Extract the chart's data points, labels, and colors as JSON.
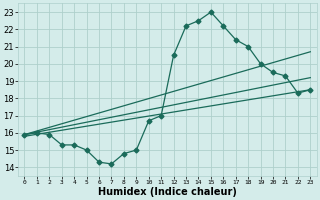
{
  "xlabel": "Humidex (Indice chaleur)",
  "xlim": [
    -0.5,
    23.5
  ],
  "ylim": [
    13.5,
    23.5
  ],
  "xticks": [
    0,
    1,
    2,
    3,
    4,
    5,
    6,
    7,
    8,
    9,
    10,
    11,
    12,
    13,
    14,
    15,
    16,
    17,
    18,
    19,
    20,
    21,
    22,
    23
  ],
  "yticks": [
    14,
    15,
    16,
    17,
    18,
    19,
    20,
    21,
    22,
    23
  ],
  "bg_color": "#d4ecea",
  "grid_color": "#aed0cc",
  "line_color": "#1a6b5a",
  "line1_x": [
    0,
    1,
    2,
    3,
    4,
    5,
    6,
    7,
    8,
    9,
    10,
    11,
    12,
    13,
    14,
    15,
    16,
    17,
    18,
    19,
    20,
    21,
    22,
    23
  ],
  "line1_y": [
    15.9,
    16.0,
    15.9,
    15.3,
    15.3,
    15.0,
    14.3,
    14.2,
    14.8,
    15.0,
    16.7,
    17.0,
    20.5,
    22.2,
    22.5,
    23.0,
    22.2,
    21.4,
    21.0,
    20.0,
    19.5,
    19.3,
    18.3,
    18.5
  ],
  "line2_x": [
    0,
    23
  ],
  "line2_y": [
    15.8,
    18.5
  ],
  "line3_x": [
    0,
    23
  ],
  "line3_y": [
    15.9,
    19.2
  ],
  "line4_x": [
    0,
    23
  ],
  "line4_y": [
    15.9,
    20.7
  ],
  "markersize": 2.5,
  "linewidth": 0.9
}
